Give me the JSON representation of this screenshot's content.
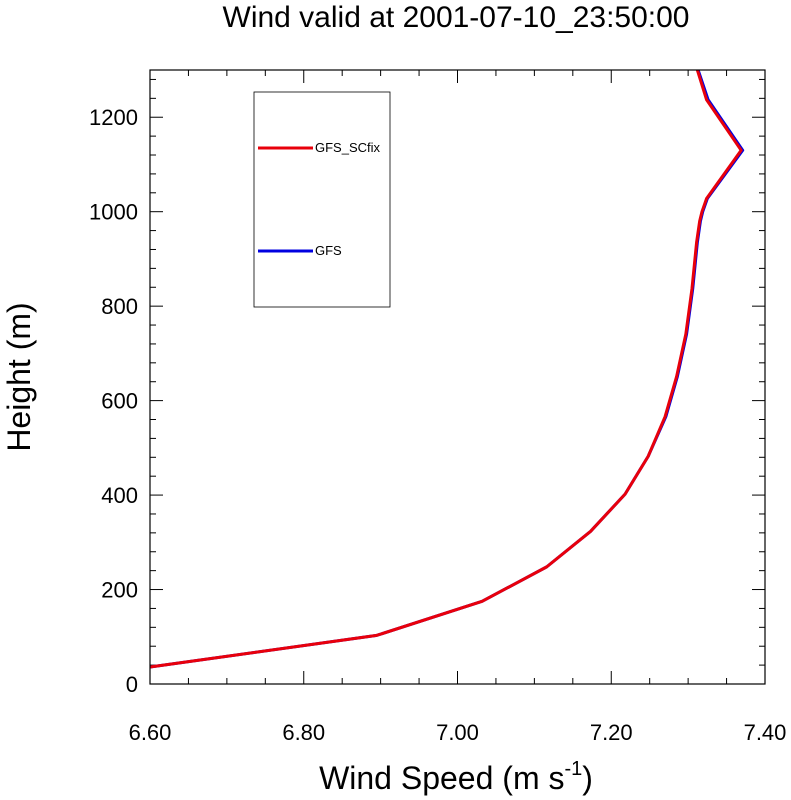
{
  "chart_data": {
    "type": "line",
    "title": "Wind valid at 2001-07-10_23:50:00",
    "xlabel": "Wind Speed (m s",
    "xlabel_sup": "-1",
    "xlabel_end": ")",
    "ylabel": "Height (m)",
    "xlim": [
      6.6,
      7.4
    ],
    "ylim": [
      0,
      1300
    ],
    "xticks": [
      "6.60",
      "6.80",
      "7.00",
      "7.20",
      "7.40"
    ],
    "yticks": [
      "0",
      "200",
      "400",
      "600",
      "800",
      "1000",
      "1200"
    ],
    "legend_position": "top-left",
    "series": [
      {
        "name": "GFS_SCfix",
        "color": "#e8000b",
        "x": [
          6.6,
          6.895,
          7.032,
          7.116,
          7.173,
          7.218,
          7.248,
          7.27,
          7.285,
          7.297,
          7.305,
          7.311,
          7.315,
          7.318,
          7.324,
          7.369,
          7.324,
          7.312
        ],
        "y": [
          36,
          103,
          175,
          248,
          323,
          402,
          482,
          566,
          651,
          741,
          837,
          935,
          980,
          1000,
          1028,
          1130,
          1237,
          1300
        ]
      },
      {
        "name": "GFS",
        "color": "#0000e0",
        "x": [
          6.6,
          6.895,
          7.032,
          7.116,
          7.173,
          7.218,
          7.248,
          7.271,
          7.286,
          7.298,
          7.306,
          7.312,
          7.316,
          7.319,
          7.325,
          7.371,
          7.326,
          7.313
        ],
        "y": [
          36,
          103,
          175,
          248,
          323,
          402,
          482,
          566,
          651,
          741,
          837,
          935,
          980,
          1000,
          1028,
          1130,
          1237,
          1300
        ]
      }
    ]
  }
}
